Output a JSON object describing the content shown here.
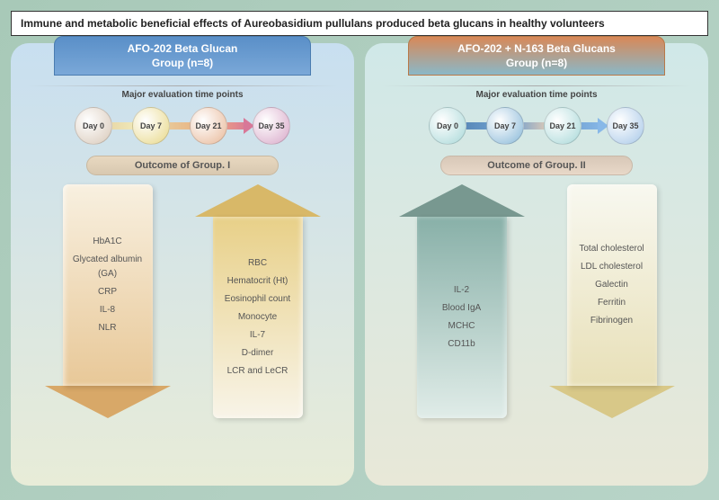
{
  "title": "Immune and metabolic beneficial effects of Aureobasidium pullulans produced beta glucans in healthy volunteers",
  "panel1": {
    "tab_line1": "AFO-202 Beta Glucan",
    "tab_line2": "Group (n=8)",
    "eval_label": "Major evaluation time points",
    "days": [
      "Day 0",
      "Day 7",
      "Day 21",
      "Day 35"
    ],
    "outcome": "Outcome of Group. I",
    "down_items": [
      "HbA1C",
      "Glycated albumin (GA)",
      "CRP",
      "IL-8",
      "NLR"
    ],
    "up_items": [
      "RBC",
      "Hematocrit (Ht)",
      "Eosinophil count",
      "Monocyte",
      "IL-7",
      "D-dimer",
      "LCR and LeCR"
    ]
  },
  "panel2": {
    "tab_line1": "AFO-202 + N-163 Beta Glucans",
    "tab_line2": "Group (n=8)",
    "eval_label": "Major evaluation time points",
    "days": [
      "Day 0",
      "Day 7",
      "Day 21",
      "Day 35"
    ],
    "outcome": "Outcome of Group. II",
    "up_items": [
      "IL-2",
      "Blood IgA",
      "MCHC",
      "CD11b"
    ],
    "down_items": [
      "Total cholesterol",
      "LDL cholesterol",
      "Galectin",
      "Ferritin",
      "Fibrinogen"
    ]
  }
}
